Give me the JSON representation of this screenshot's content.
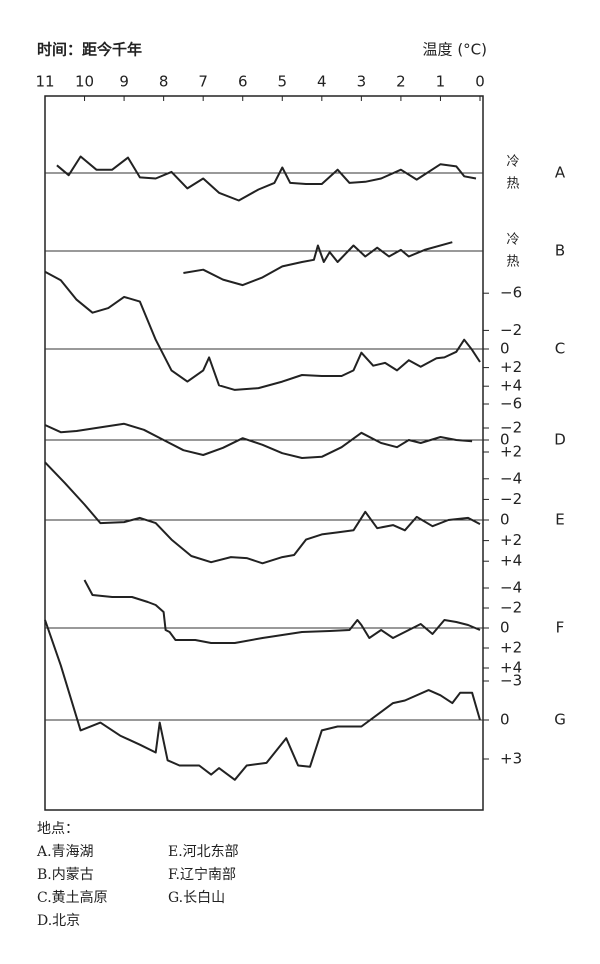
{
  "chart_data": {
    "type": "line",
    "x_label": "时间：距今千年",
    "y_label": "温度 (°C)",
    "xlim": [
      11,
      0
    ],
    "xticks": [
      11,
      10,
      9,
      8,
      7,
      6,
      5,
      4,
      3,
      2,
      1,
      0
    ],
    "color": "#222222",
    "panels": [
      {
        "name": "A",
        "ylim": [
          -3,
          2
        ],
        "baseline": 0,
        "yticks": [
          {
            "value": 1,
            "label": "冷"
          },
          {
            "value": -1,
            "label": "热"
          }
        ],
        "x": [
          10.7,
          10.4,
          10.1,
          9.7,
          9.3,
          8.9,
          8.6,
          8.2,
          7.8,
          7.4,
          7.0,
          6.6,
          6.1,
          5.6,
          5.2,
          5.0,
          4.8,
          4.4,
          4.0,
          3.6,
          3.3,
          2.9,
          2.5,
          2.0,
          1.6,
          1.0,
          0.6,
          0.4,
          0.1
        ],
        "values": [
          0.7,
          -0.2,
          1.5,
          0.3,
          0.3,
          1.4,
          -0.4,
          -0.5,
          0.1,
          -1.4,
          -0.5,
          -1.8,
          -2.5,
          -1.5,
          -0.9,
          0.5,
          -0.9,
          -1.0,
          -1.0,
          0.3,
          -0.9,
          -0.8,
          -0.5,
          0.3,
          -0.6,
          0.8,
          0.6,
          -0.3,
          -0.5
        ]
      },
      {
        "name": "B",
        "ylim": [
          -4,
          2
        ],
        "baseline": 0,
        "yticks": [
          {
            "value": 1,
            "label": "冷"
          },
          {
            "value": -1,
            "label": "热"
          }
        ],
        "x": [
          7.5,
          7.0,
          6.5,
          6.0,
          5.5,
          5.0,
          4.5,
          4.2,
          4.1,
          3.95,
          3.8,
          3.6,
          3.2,
          2.9,
          2.6,
          2.3,
          2.0,
          1.8,
          1.4,
          0.7
        ],
        "values": [
          -2.0,
          -1.7,
          -2.6,
          -3.1,
          -2.4,
          -1.4,
          -1.0,
          -0.8,
          0.5,
          -1.0,
          -0.1,
          -1.0,
          0.5,
          -0.5,
          0.3,
          -0.5,
          0.1,
          -0.5,
          0.1,
          0.8
        ]
      },
      {
        "name": "C",
        "ylim": [
          5,
          -9
        ],
        "baseline": 0,
        "yticks": [
          {
            "value": -6,
            "label": "−6"
          },
          {
            "value": -2,
            "label": "−2"
          },
          0,
          {
            "value": 2,
            "label": "+2"
          },
          {
            "value": 4,
            "label": "+4"
          }
        ],
        "x": [
          11,
          10.6,
          10.2,
          9.8,
          9.4,
          9.0,
          8.6,
          8.2,
          7.8,
          7.4,
          7.0,
          6.85,
          6.6,
          6.2,
          5.6,
          5.0,
          4.5,
          4.0,
          3.5,
          3.2,
          3.0,
          2.7,
          2.4,
          2.1,
          1.8,
          1.5,
          1.1,
          0.9,
          0.6,
          0.4,
          0.2,
          0
        ],
        "values": [
          -8.3,
          -7.4,
          -5.3,
          -3.9,
          -4.4,
          -5.6,
          -5.1,
          -1.0,
          2.3,
          3.5,
          2.3,
          0.9,
          3.9,
          4.4,
          4.2,
          3.5,
          2.8,
          2.9,
          2.9,
          2.3,
          0.4,
          1.8,
          1.5,
          2.3,
          1.2,
          1.9,
          1.0,
          0.9,
          0.3,
          -1.0,
          0.1,
          1.4
        ]
      },
      {
        "name": "D",
        "ylim": [
          4,
          -7
        ],
        "baseline": 0,
        "yticks": [
          {
            "value": -6,
            "label": "−6"
          },
          {
            "value": -2,
            "label": "−2"
          },
          0,
          {
            "value": 2,
            "label": "+2"
          }
        ],
        "x": [
          11,
          10.6,
          10.2,
          9.5,
          9.0,
          8.5,
          8.0,
          7.5,
          7.0,
          6.5,
          6.0,
          5.5,
          5.0,
          4.5,
          4.0,
          3.5,
          3.0,
          2.5,
          2.1,
          1.8,
          1.5,
          1.0,
          0.6,
          0.2
        ],
        "values": [
          -2.5,
          -1.3,
          -1.5,
          -2.2,
          -2.7,
          -1.7,
          0,
          1.7,
          2.5,
          1.3,
          -0.3,
          0.8,
          2.2,
          3.0,
          2.8,
          1.2,
          -1.2,
          0.5,
          1.2,
          0,
          0.5,
          -0.5,
          0,
          0.2
        ]
      },
      {
        "name": "E",
        "ylim": [
          5,
          -6
        ],
        "baseline": 0,
        "yticks": [
          {
            "value": -4,
            "label": "−4"
          },
          {
            "value": -2,
            "label": "−2"
          },
          0,
          {
            "value": 2,
            "label": "+2"
          },
          {
            "value": 4,
            "label": "+4"
          }
        ],
        "x": [
          11,
          10.5,
          10.0,
          9.6,
          9.0,
          8.6,
          8.2,
          7.8,
          7.3,
          6.8,
          6.3,
          5.9,
          5.5,
          5.0,
          4.7,
          4.4,
          4.0,
          3.6,
          3.2,
          2.9,
          2.6,
          2.2,
          1.9,
          1.6,
          1.2,
          0.8,
          0.3,
          0
        ],
        "values": [
          -5.6,
          -3.6,
          -1.5,
          0.3,
          0.2,
          -0.2,
          0.3,
          1.9,
          3.5,
          4.1,
          3.6,
          3.7,
          4.2,
          3.6,
          3.4,
          1.9,
          1.4,
          1.2,
          1.0,
          -0.8,
          0.8,
          0.5,
          1.0,
          -0.3,
          0.6,
          0,
          -0.2,
          0.4
        ]
      },
      {
        "name": "F",
        "ylim": [
          5,
          -6
        ],
        "baseline": 0,
        "yticks": [
          {
            "value": -4,
            "label": "−4"
          },
          {
            "value": -2,
            "label": "−2"
          },
          0,
          {
            "value": 2,
            "label": "+2"
          },
          {
            "value": 4,
            "label": "+4"
          }
        ],
        "x": [
          10.0,
          9.8,
          9.3,
          8.8,
          8.4,
          8.2,
          8.0,
          7.95,
          7.85,
          7.7,
          7.2,
          6.8,
          6.2,
          5.5,
          5.0,
          4.5,
          3.8,
          3.3,
          3.1,
          3.0,
          2.8,
          2.5,
          2.2,
          1.8,
          1.5,
          1.2,
          0.9,
          0.6,
          0.3,
          0
        ],
        "values": [
          -4.8,
          -3.3,
          -3.1,
          -3.1,
          -2.6,
          -2.3,
          -1.6,
          0.2,
          0.4,
          1.2,
          1.2,
          1.5,
          1.5,
          1.0,
          0.7,
          0.4,
          0.3,
          0.2,
          -0.8,
          -0.3,
          1.0,
          0.2,
          1.0,
          0.2,
          -0.4,
          0.6,
          -0.8,
          -0.6,
          -0.3,
          0.2
        ]
      },
      {
        "name": "G",
        "ylim": [
          6,
          -8
        ],
        "baseline": 0,
        "yticks": [
          {
            "value": -3,
            "label": "−3"
          },
          0,
          {
            "value": 3,
            "label": "+3"
          }
        ],
        "x": [
          11,
          10.6,
          10.1,
          9.6,
          9.1,
          8.6,
          8.2,
          8.1,
          7.9,
          7.6,
          7.1,
          6.8,
          6.6,
          6.2,
          5.9,
          5.4,
          4.9,
          4.6,
          4.3,
          4.0,
          3.6,
          3.0,
          2.6,
          2.2,
          1.9,
          1.3,
          1.0,
          0.7,
          0.5,
          0.2,
          0
        ],
        "values": [
          -7.7,
          -4.2,
          0.8,
          0.2,
          1.2,
          1.9,
          2.5,
          0.2,
          3.1,
          3.5,
          3.5,
          4.2,
          3.7,
          4.6,
          3.5,
          3.3,
          1.4,
          3.5,
          3.6,
          0.8,
          0.5,
          0.5,
          -0.4,
          -1.3,
          -1.5,
          -2.3,
          -1.9,
          -1.3,
          -2.1,
          -2.1,
          0
        ]
      }
    ]
  },
  "legend": {
    "title": "地点：",
    "items": [
      "A.青海湖",
      "B.内蒙古",
      "C.黄土高原",
      "D.北京",
      "E.河北东部",
      "F.辽宁南部",
      "G.长白山"
    ]
  }
}
